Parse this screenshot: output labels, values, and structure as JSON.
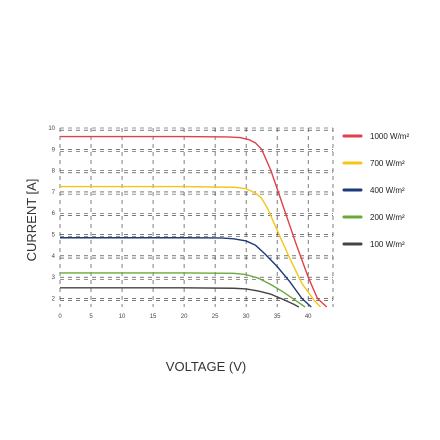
{
  "chart_data": {
    "type": "line",
    "title": "",
    "xlabel": "VOLTAGE (V)",
    "ylabel": "CURRENT [A]",
    "xlim": [
      0,
      44
    ],
    "ylim": [
      1.6,
      10
    ],
    "x_ticks": [
      0,
      5,
      10,
      15,
      20,
      25,
      30,
      35,
      40
    ],
    "y_ticks": [
      2,
      3,
      4,
      5,
      6,
      7,
      8,
      9,
      10
    ],
    "grid": true,
    "legend_position": "right",
    "series": [
      {
        "name": "1000 W/m²",
        "color": "#e0404a",
        "points": [
          [
            0,
            9.6
          ],
          [
            10,
            9.6
          ],
          [
            20,
            9.6
          ],
          [
            27,
            9.58
          ],
          [
            29,
            9.55
          ],
          [
            30.5,
            9.45
          ],
          [
            31.5,
            9.3
          ],
          [
            32.5,
            9.0
          ],
          [
            34,
            8.0
          ],
          [
            36,
            6.3
          ],
          [
            38,
            4.6
          ],
          [
            40,
            3.0
          ],
          [
            41.5,
            2.0
          ],
          [
            43,
            1.6
          ]
        ]
      },
      {
        "name": "700 W/m²",
        "color": "#f5c518",
        "points": [
          [
            0,
            7.25
          ],
          [
            10,
            7.25
          ],
          [
            20,
            7.25
          ],
          [
            28,
            7.22
          ],
          [
            30,
            7.15
          ],
          [
            31.5,
            6.95
          ],
          [
            32.5,
            6.7
          ],
          [
            33.5,
            6.2
          ],
          [
            35,
            5.2
          ],
          [
            37,
            3.9
          ],
          [
            39,
            2.7
          ],
          [
            41,
            1.9
          ],
          [
            42,
            1.6
          ]
        ]
      },
      {
        "name": "400 W/m²",
        "color": "#1e3a7a",
        "points": [
          [
            0,
            4.85
          ],
          [
            10,
            4.85
          ],
          [
            20,
            4.85
          ],
          [
            26,
            4.84
          ],
          [
            28,
            4.8
          ],
          [
            30,
            4.7
          ],
          [
            31.5,
            4.5
          ],
          [
            33,
            4.1
          ],
          [
            35,
            3.5
          ],
          [
            37,
            2.8
          ],
          [
            39,
            2.0
          ],
          [
            40.5,
            1.6
          ]
        ]
      },
      {
        "name": "200 W/m²",
        "color": "#6aa83c",
        "points": [
          [
            0,
            3.2
          ],
          [
            10,
            3.2
          ],
          [
            20,
            3.2
          ],
          [
            28,
            3.18
          ],
          [
            30,
            3.12
          ],
          [
            32,
            2.95
          ],
          [
            34,
            2.65
          ],
          [
            36,
            2.3
          ],
          [
            38,
            1.9
          ],
          [
            39.5,
            1.6
          ]
        ]
      },
      {
        "name": "100 W/m²",
        "color": "#444444",
        "points": [
          [
            0,
            2.5
          ],
          [
            10,
            2.5
          ],
          [
            20,
            2.5
          ],
          [
            28,
            2.48
          ],
          [
            30,
            2.45
          ],
          [
            32,
            2.35
          ],
          [
            34,
            2.2
          ],
          [
            36,
            1.95
          ],
          [
            37.5,
            1.75
          ],
          [
            38.5,
            1.6
          ]
        ]
      }
    ]
  }
}
